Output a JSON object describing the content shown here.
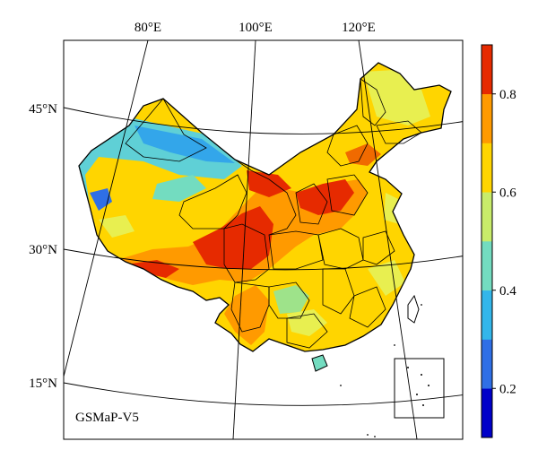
{
  "map": {
    "product_label": "GSMaP-V5",
    "longitude_labels": [
      "80°E",
      "100°E",
      "120°E"
    ],
    "latitude_labels": [
      "45°N",
      "30°N",
      "15°N"
    ]
  },
  "colorbar": {
    "tick_labels": [
      "0.2",
      "0.4",
      "0.6",
      "0.8"
    ],
    "colors": [
      "#0000c8",
      "#2f6fe6",
      "#33b6ea",
      "#73dcc0",
      "#c8ec6a",
      "#ffd500",
      "#ff9a00",
      "#e62a00"
    ],
    "range": [
      0.1,
      0.9
    ]
  },
  "palette": {
    "red": "#e62a00",
    "dark_orange": "#f06a00",
    "orange": "#ff9a00",
    "yellow": "#ffd500",
    "light_yellow": "#e8ef50",
    "green": "#9ee38a",
    "cyan": "#5fd0d6",
    "blue": "#33a6ea"
  }
}
